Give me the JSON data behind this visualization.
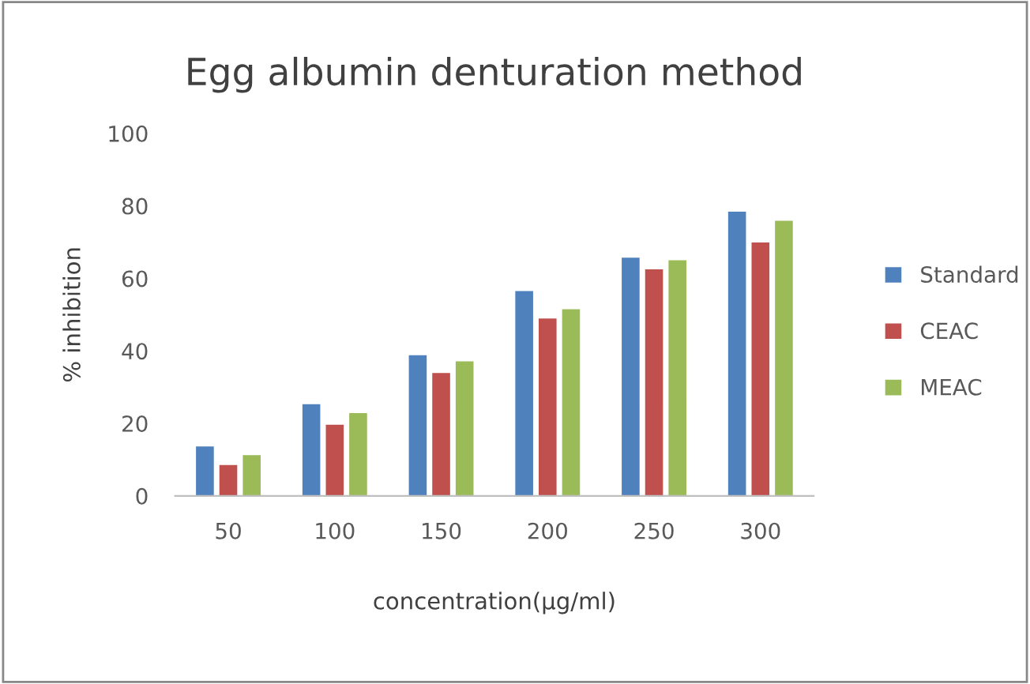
{
  "chart_data": {
    "type": "bar",
    "title": "Egg albumin denturation method",
    "xlabel": "concentration(µg/ml)",
    "ylabel": "% inhibition",
    "categories": [
      "50",
      "100",
      "150",
      "200",
      "250",
      "300"
    ],
    "series": [
      {
        "name": "Standard",
        "color": "#4f81bd",
        "values": [
          13.8,
          25.5,
          39,
          56.7,
          65.9,
          78.6
        ]
      },
      {
        "name": "CEAC",
        "color": "#c0504d",
        "values": [
          8.7,
          19.8,
          34.1,
          49.1,
          62.7,
          70.1
        ]
      },
      {
        "name": "MEAC",
        "color": "#9bbb59",
        "values": [
          11.4,
          23,
          37.3,
          51.7,
          65.2,
          76.1
        ]
      }
    ],
    "ylim": [
      0,
      100
    ],
    "yticks": [
      0,
      20,
      40,
      60,
      80,
      100
    ],
    "grid": false,
    "legend": "right"
  }
}
